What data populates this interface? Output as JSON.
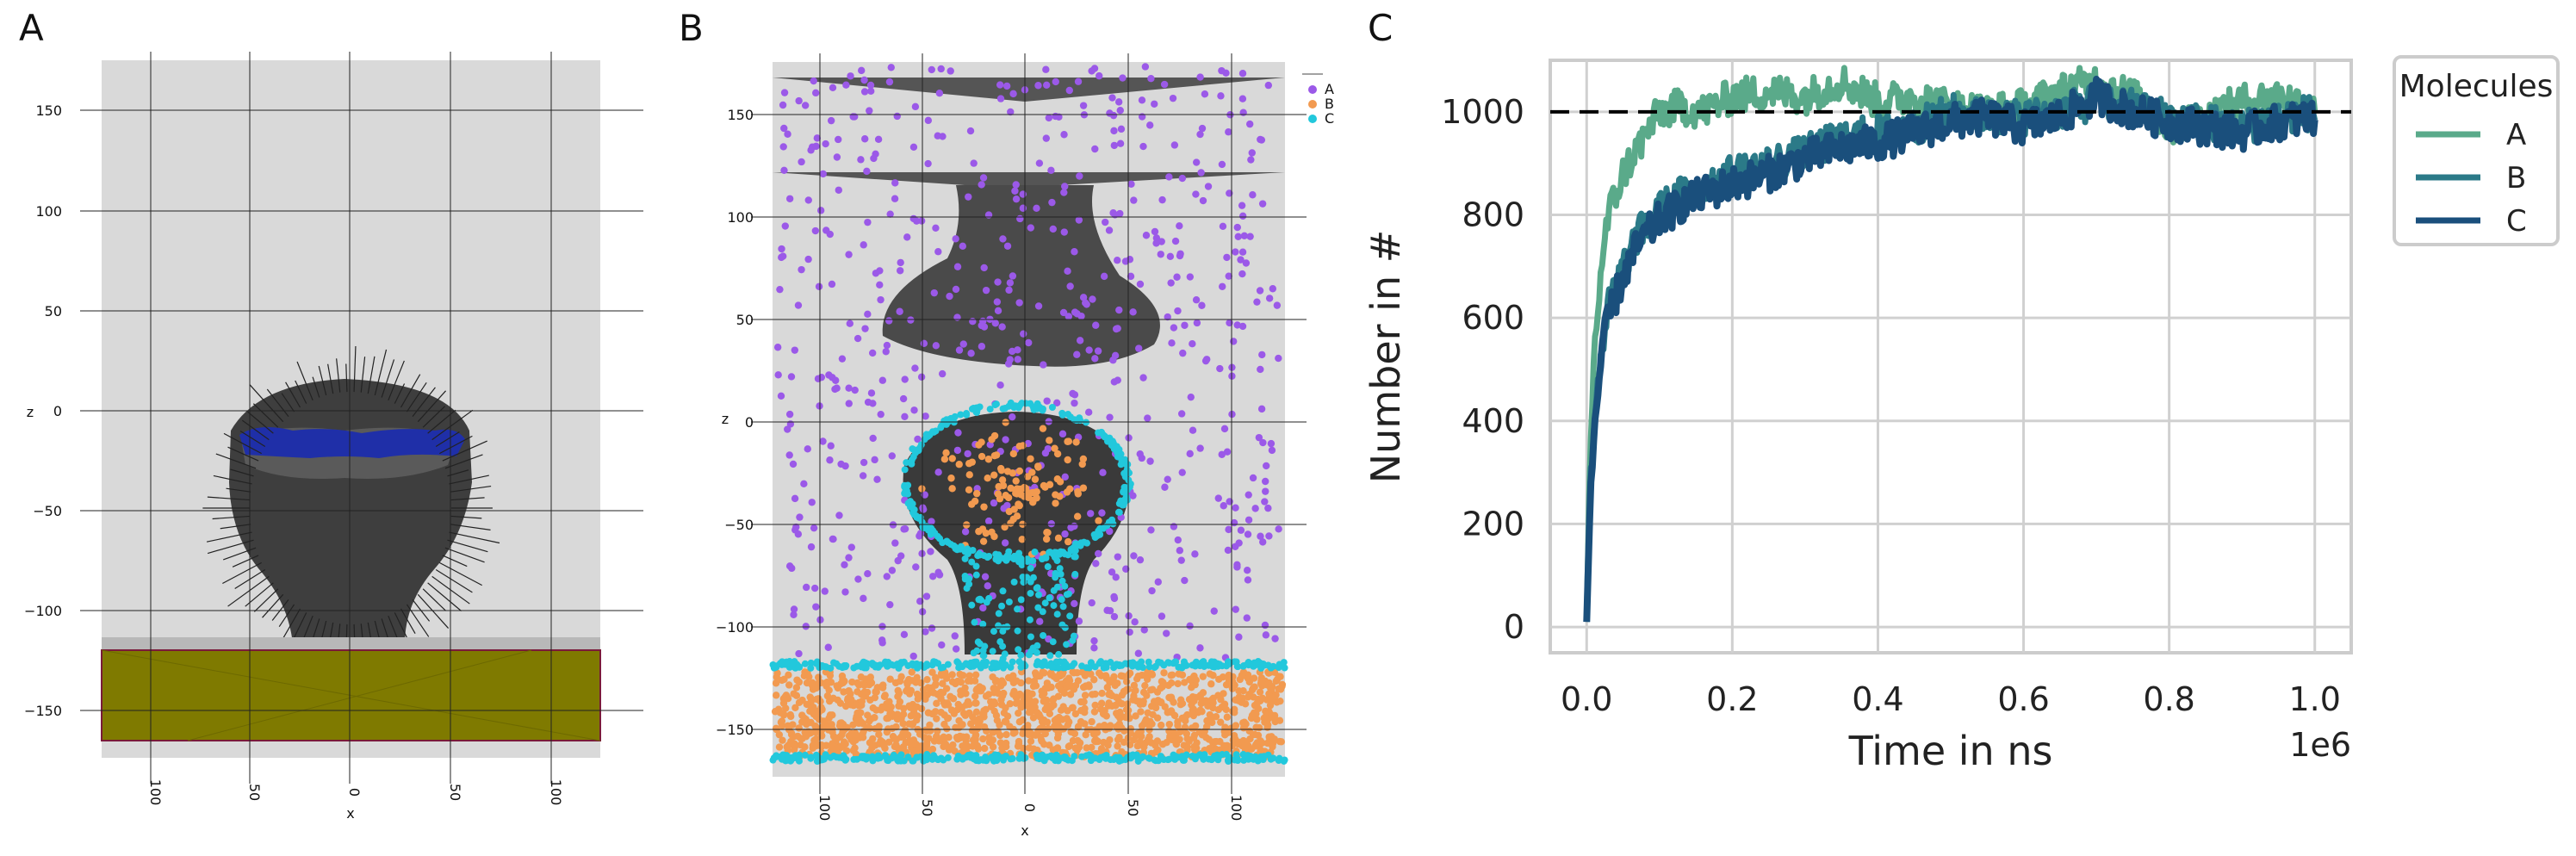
{
  "panels": {
    "a": {
      "label": "A"
    },
    "b": {
      "label": "B"
    },
    "c": {
      "label": "C"
    }
  },
  "colors": {
    "plot_bg": "#d9d9d9",
    "grid_dark": "#222222",
    "mesh_gray": "#4a4a4a",
    "blue_cap": "#1f2fa8",
    "olive_slab": "#7f7a00",
    "dot_a": "#9b59e8",
    "dot_b": "#f29a50",
    "dot_c": "#22c8dc",
    "line_a": "#5aaa8a",
    "line_b": "#2b7a88",
    "line_c": "#1a4f7c",
    "ref_line": "#000000"
  },
  "chart_data": [
    {
      "panel": "A",
      "type": "3d-mesh",
      "ylabel": "z",
      "xlabel": "x",
      "yticks": [
        "150",
        "100",
        "50",
        "0",
        "−50",
        "−100",
        "−150"
      ],
      "xticks": [
        "100",
        "50",
        "0",
        "50",
        "100"
      ]
    },
    {
      "panel": "B",
      "type": "scatter",
      "ylabel": "z",
      "xlabel": "x",
      "yticks": [
        "150",
        "100",
        "50",
        "0",
        "−50",
        "−100",
        "−150"
      ],
      "xticks": [
        "100",
        "50",
        "0",
        "50",
        "100"
      ],
      "legend": {
        "position": "top-right",
        "entries": [
          "A",
          "B",
          "C"
        ]
      }
    },
    {
      "panel": "C",
      "type": "line",
      "xlabel": "Time in ns",
      "ylabel": "Number in #",
      "x_offset_text": "1e6",
      "xlim": [
        -0.05,
        1.05
      ],
      "ylim": [
        -50,
        1100
      ],
      "xticks": [
        "0.0",
        "0.2",
        "0.4",
        "0.6",
        "0.8",
        "1.0"
      ],
      "yticks": [
        "0",
        "200",
        "400",
        "600",
        "800",
        "1000"
      ],
      "reference_line": {
        "y": 1000,
        "style": "dashed"
      },
      "legend": {
        "title": "Molecules",
        "position": "outside-right",
        "entries": [
          "A",
          "B",
          "C"
        ]
      },
      "series": [
        {
          "name": "A",
          "x": [
            0,
            0.005,
            0.01,
            0.02,
            0.03,
            0.05,
            0.07,
            0.1,
            0.13,
            0.16,
            0.2,
            0.25,
            0.3,
            0.35,
            0.4,
            0.45,
            0.5,
            0.55,
            0.6,
            0.65,
            0.7,
            0.75,
            0.8,
            0.85,
            0.9,
            0.95,
            1.0
          ],
          "y": [
            10,
            350,
            520,
            700,
            800,
            880,
            930,
            1000,
            1010,
            1000,
            1030,
            1040,
            1030,
            1060,
            1020,
            1030,
            1010,
            1000,
            1010,
            1040,
            1060,
            1030,
            970,
            990,
            1020,
            1030,
            1010
          ]
        },
        {
          "name": "B",
          "x": [
            0,
            0.005,
            0.01,
            0.02,
            0.03,
            0.05,
            0.07,
            0.1,
            0.13,
            0.16,
            0.2,
            0.25,
            0.3,
            0.35,
            0.4,
            0.45,
            0.5,
            0.55,
            0.6,
            0.65,
            0.7,
            0.75,
            0.8,
            0.85,
            0.9,
            0.95,
            1.0
          ],
          "y": [
            10,
            260,
            400,
            540,
            620,
            700,
            760,
            810,
            840,
            860,
            880,
            900,
            920,
            950,
            960,
            970,
            1000,
            990,
            990,
            1000,
            1020,
            1010,
            990,
            980,
            970,
            990,
            1000
          ]
        },
        {
          "name": "C",
          "x": [
            0,
            0.005,
            0.01,
            0.02,
            0.03,
            0.05,
            0.07,
            0.1,
            0.13,
            0.16,
            0.2,
            0.25,
            0.3,
            0.35,
            0.4,
            0.45,
            0.5,
            0.55,
            0.6,
            0.65,
            0.7,
            0.75,
            0.8,
            0.85,
            0.9,
            0.95,
            1.0
          ],
          "y": [
            10,
            250,
            380,
            520,
            600,
            680,
            740,
            790,
            820,
            840,
            860,
            880,
            910,
            930,
            940,
            960,
            980,
            990,
            970,
            990,
            1030,
            1000,
            980,
            970,
            960,
            980,
            990
          ]
        }
      ]
    }
  ]
}
